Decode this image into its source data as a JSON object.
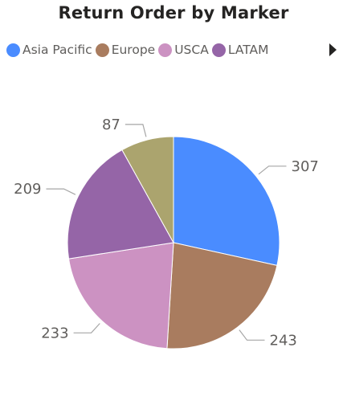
{
  "title": "Return Order by Marker",
  "chart_data": {
    "type": "pie",
    "title": "Return Order by Marker",
    "legend_position": "top-left",
    "categories": [
      "Asia Pacific",
      "Europe",
      "USCA",
      "LATAM",
      ""
    ],
    "values": [
      307,
      243,
      233,
      209,
      87
    ],
    "colors": [
      "#4a8cff",
      "#a97c5f",
      "#cc92c2",
      "#9565a7",
      "#aba46e"
    ],
    "data_labels": [
      "307",
      "243",
      "233",
      "209",
      "87"
    ]
  },
  "legend": {
    "items": [
      {
        "label": "Asia Pacific",
        "color": "#4a8cff"
      },
      {
        "label": "Europe",
        "color": "#a97c5f"
      },
      {
        "label": "USCA",
        "color": "#cc92c2"
      },
      {
        "label": "LATAM",
        "color": "#9565a7"
      }
    ],
    "next_icon": "triangle-right-icon"
  }
}
